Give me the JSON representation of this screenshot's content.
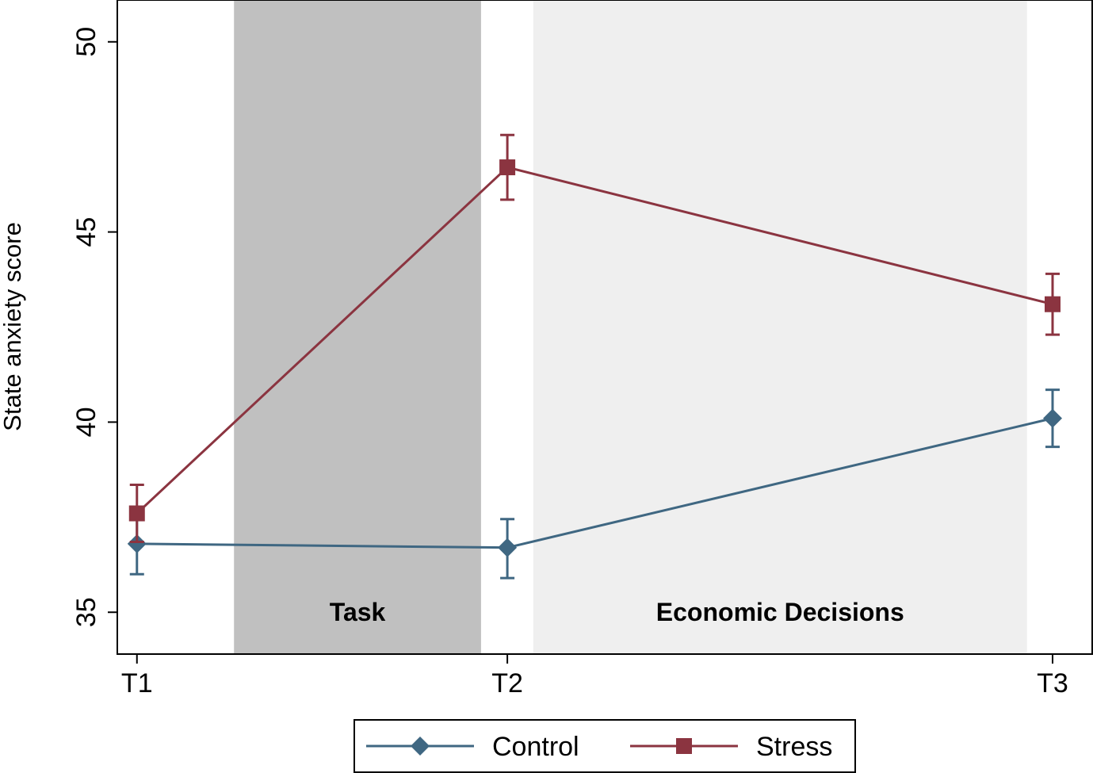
{
  "chart_data": {
    "type": "line",
    "title": "",
    "xlabel": "",
    "ylabel": "State anxiety score",
    "categories": [
      "T1",
      "T2",
      "T3"
    ],
    "x_positions": [
      1,
      2,
      3.472
    ],
    "xlim": [
      0.947,
      3.579
    ],
    "ylim": [
      33.9,
      51.1
    ],
    "yticks": [
      35,
      40,
      45,
      50
    ],
    "grid": false,
    "legend_position": "bottom-center",
    "bands": [
      {
        "label": "Task",
        "x_start": 1.262,
        "x_end": 1.929,
        "color": "#c0c0c0"
      },
      {
        "label": "Economic Decisions",
        "x_start": 2.07,
        "x_end": 3.403,
        "color": "#efefef"
      }
    ],
    "series": [
      {
        "name": "Control",
        "color": "#3f6782",
        "marker": "diamond",
        "values": [
          36.8,
          36.7,
          40.1
        ],
        "ci_low": [
          36.0,
          35.9,
          39.35
        ],
        "ci_high": [
          37.55,
          37.45,
          40.85
        ]
      },
      {
        "name": "Stress",
        "color": "#8b3440",
        "marker": "square",
        "values": [
          37.6,
          46.7,
          43.1
        ],
        "ci_low": [
          36.85,
          45.85,
          42.3
        ],
        "ci_high": [
          38.35,
          47.55,
          43.9
        ]
      }
    ]
  }
}
